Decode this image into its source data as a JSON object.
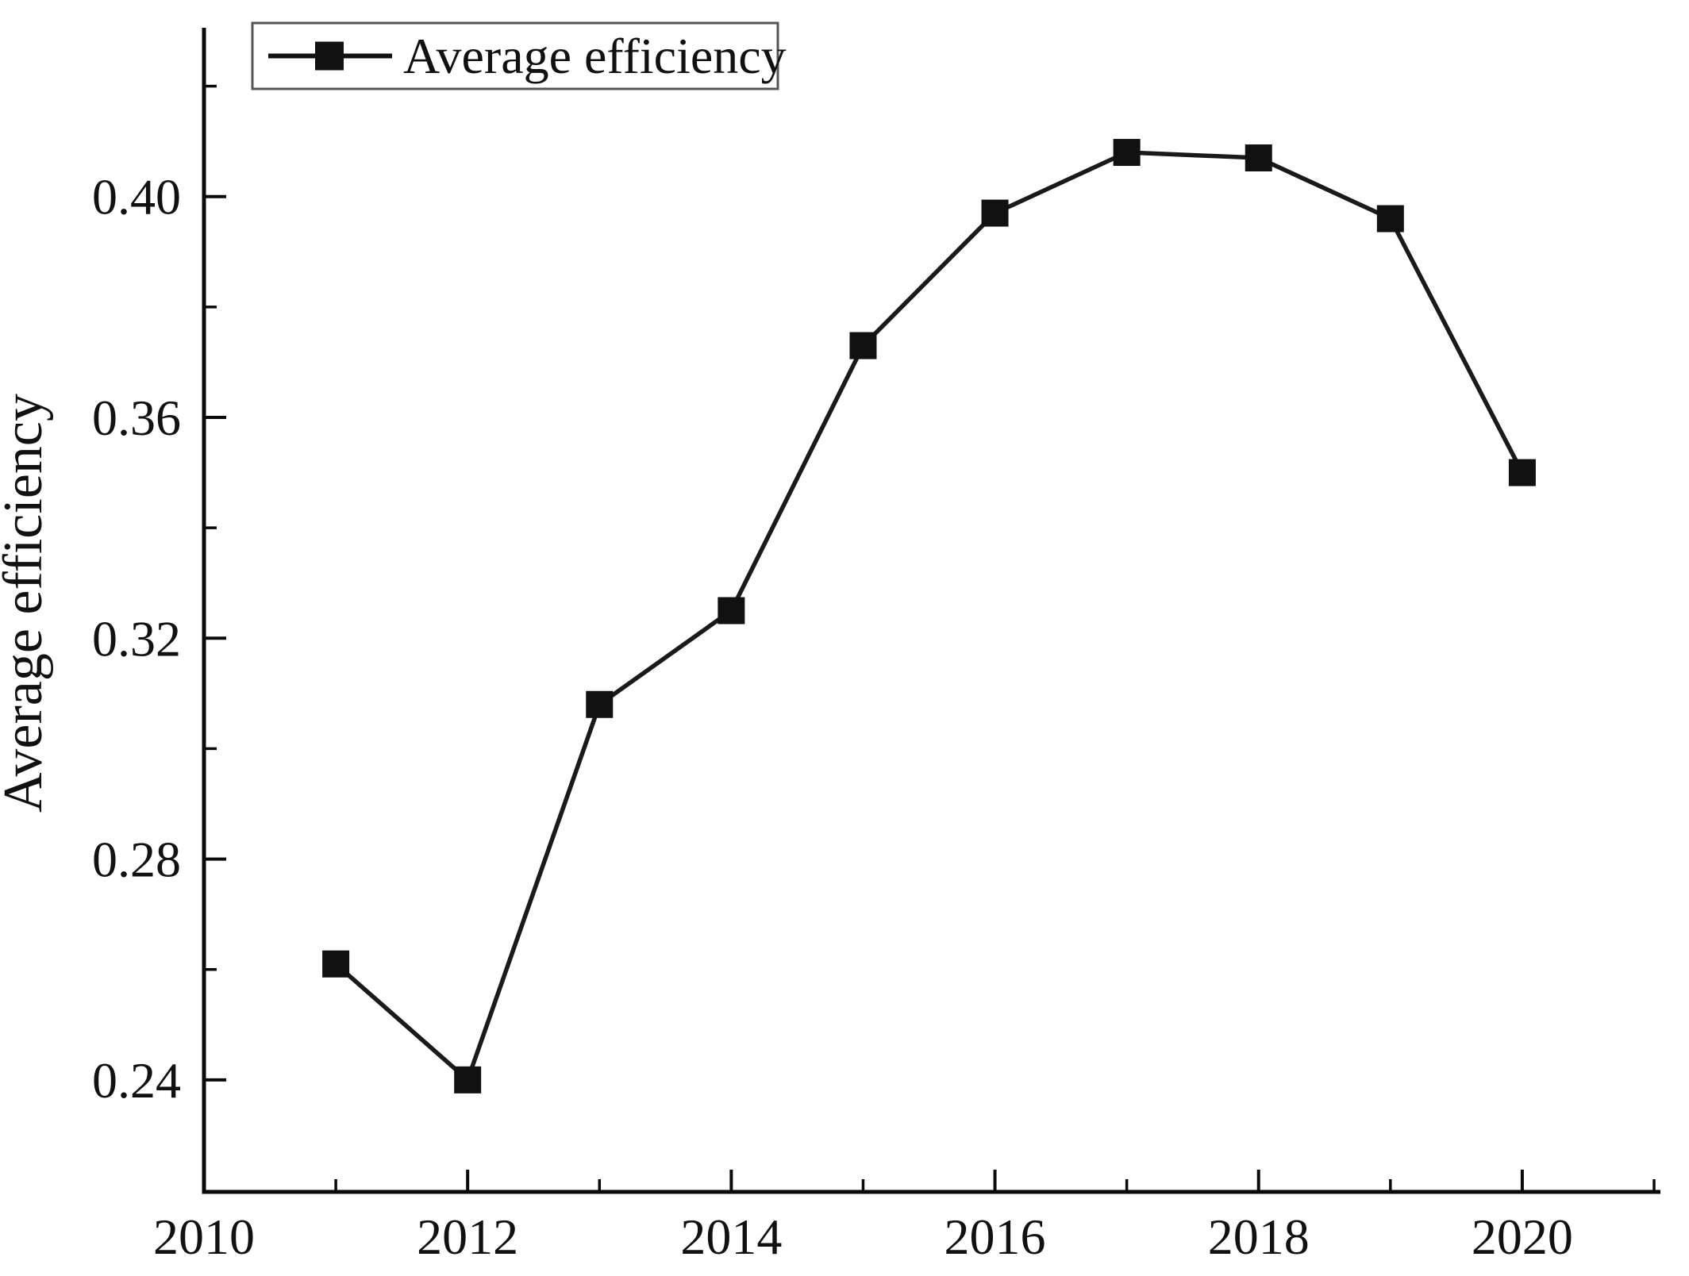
{
  "figure": {
    "ylabel": "Average efficiency",
    "background": "#ffffff",
    "axis_color": "#0a0a0a",
    "line_color": "#1a1a1a",
    "marker_color": "#111111",
    "legend_border_color": "#555555"
  },
  "legend": {
    "label": "Average efficiency",
    "position": "top-left",
    "marker": "filled-square"
  },
  "chart_data": {
    "type": "line",
    "title": "",
    "xlabel": "",
    "ylabel": "Average efficiency",
    "x": [
      2011,
      2012,
      2013,
      2014,
      2015,
      2016,
      2017,
      2018,
      2019,
      2020
    ],
    "series": [
      {
        "name": "Average efficiency",
        "marker": "square",
        "color": "#111111",
        "values": [
          0.261,
          0.24,
          0.308,
          0.325,
          0.373,
          0.397,
          0.408,
          0.407,
          0.396,
          0.35
        ]
      }
    ],
    "xlim": [
      2010,
      2021
    ],
    "ylim": [
      0.22,
      0.43
    ],
    "x_major_ticks": [
      2010,
      2012,
      2014,
      2016,
      2018,
      2020
    ],
    "x_minor_ticks": [
      2011,
      2013,
      2015,
      2017,
      2019,
      2021
    ],
    "y_major_ticks": [
      0.24,
      0.28,
      0.32,
      0.36,
      0.4
    ],
    "y_minor_ticks": [
      0.26,
      0.3,
      0.34,
      0.38,
      0.42
    ],
    "y_tick_decimals": 2,
    "grid": false,
    "legend_position": "top-left"
  }
}
